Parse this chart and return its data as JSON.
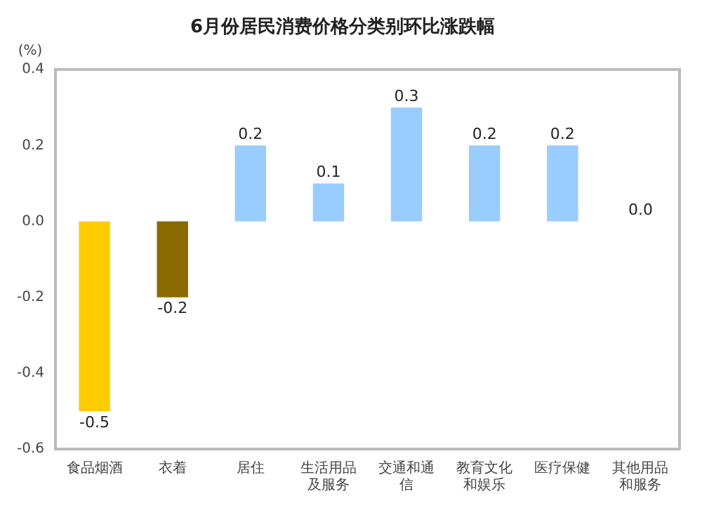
{
  "chart_data": {
    "type": "bar",
    "title": "6月份居民消费价格分类别环比涨跌幅",
    "ylabel": "(%)",
    "categories": [
      "食品烟酒",
      "衣着",
      "居住",
      "生活用品及服务",
      "交通和通信",
      "教育文化和娱乐",
      "医疗保健",
      "其他用品和服务"
    ],
    "values": [
      -0.5,
      -0.2,
      0.2,
      0.1,
      0.3,
      0.2,
      0.2,
      0.0
    ],
    "value_labels": [
      "-0.5",
      "-0.2",
      "0.2",
      "0.1",
      "0.3",
      "0.2",
      "0.2",
      "0.0"
    ],
    "colors": [
      "#ffcc00",
      "#8a6a00",
      "#99ccff",
      "#99ccff",
      "#99ccff",
      "#99ccff",
      "#99ccff",
      "#99ccff"
    ],
    "ylim": [
      -0.6,
      0.4
    ],
    "yticks": [
      {
        "value": -0.6,
        "label": "-0.6"
      },
      {
        "value": -0.4,
        "label": "-0.4"
      },
      {
        "value": -0.2,
        "label": "-0.2"
      },
      {
        "value": 0,
        "label": "0.0"
      },
      {
        "value": 0.2,
        "label": "0.2"
      },
      {
        "value": 0.4,
        "label": "0.4"
      }
    ],
    "grid": false,
    "legend": false
  }
}
